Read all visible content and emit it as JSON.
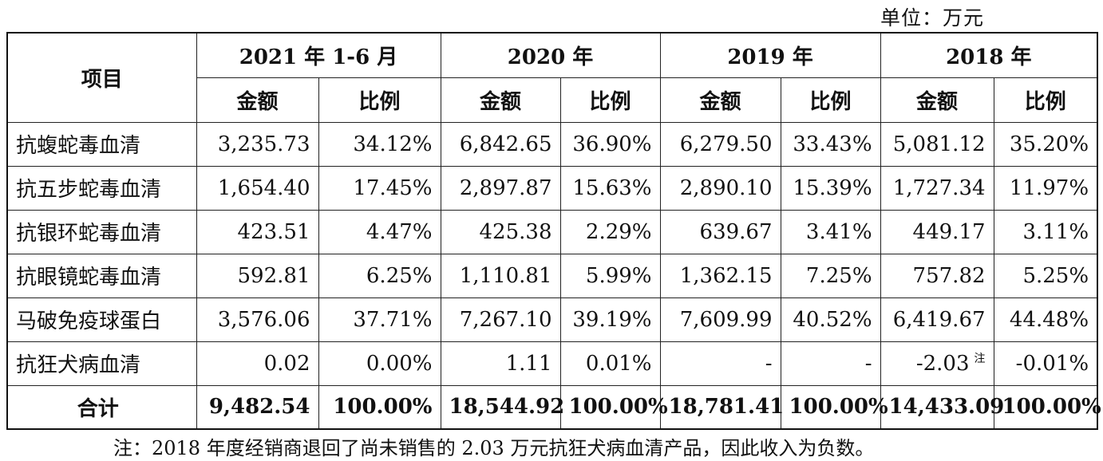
{
  "unit_label": "单位：万元",
  "header": {
    "item": "项目",
    "periods": [
      "2021 年 1-6 月",
      "2020 年",
      "2019 年",
      "2018 年"
    ],
    "amount": "金额",
    "ratio": "比例"
  },
  "rows": [
    {
      "name": "抗蝮蛇毒血清",
      "cells": [
        "3,235.73",
        "34.12%",
        "6,842.65",
        "36.90%",
        "6,279.50",
        "33.43%",
        "5,081.12",
        "35.20%"
      ]
    },
    {
      "name": "抗五步蛇毒血清",
      "cells": [
        "1,654.40",
        "17.45%",
        "2,897.87",
        "15.63%",
        "2,890.10",
        "15.39%",
        "1,727.34",
        "11.97%"
      ]
    },
    {
      "name": "抗银环蛇毒血清",
      "cells": [
        "423.51",
        "4.47%",
        "425.38",
        "2.29%",
        "639.67",
        "3.41%",
        "449.17",
        "3.11%"
      ]
    },
    {
      "name": "抗眼镜蛇毒血清",
      "cells": [
        "592.81",
        "6.25%",
        "1,110.81",
        "5.99%",
        "1,362.15",
        "7.25%",
        "757.82",
        "5.25%"
      ]
    },
    {
      "name": "马破免疫球蛋白",
      "cells": [
        "3,576.06",
        "37.71%",
        "7,267.10",
        "39.19%",
        "7,609.99",
        "40.52%",
        "6,419.67",
        "44.48%"
      ]
    },
    {
      "name": "抗狂犬病血清",
      "cells": [
        "0.02",
        "0.00%",
        "1.11",
        "0.01%",
        "-",
        "-",
        "-2.03",
        "-0.01%"
      ],
      "note_mark": "注"
    }
  ],
  "total": {
    "name": "合计",
    "cells": [
      "9,482.54",
      "100.00%",
      "18,544.92",
      "100.00%",
      "18,781.41",
      "100.00%",
      "14,433.09",
      "100.00%"
    ]
  },
  "footnote": "注：2018 年度经销商退回了尚未销售的 2.03 万元抗狂犬病血清产品，因此收入为负数。"
}
